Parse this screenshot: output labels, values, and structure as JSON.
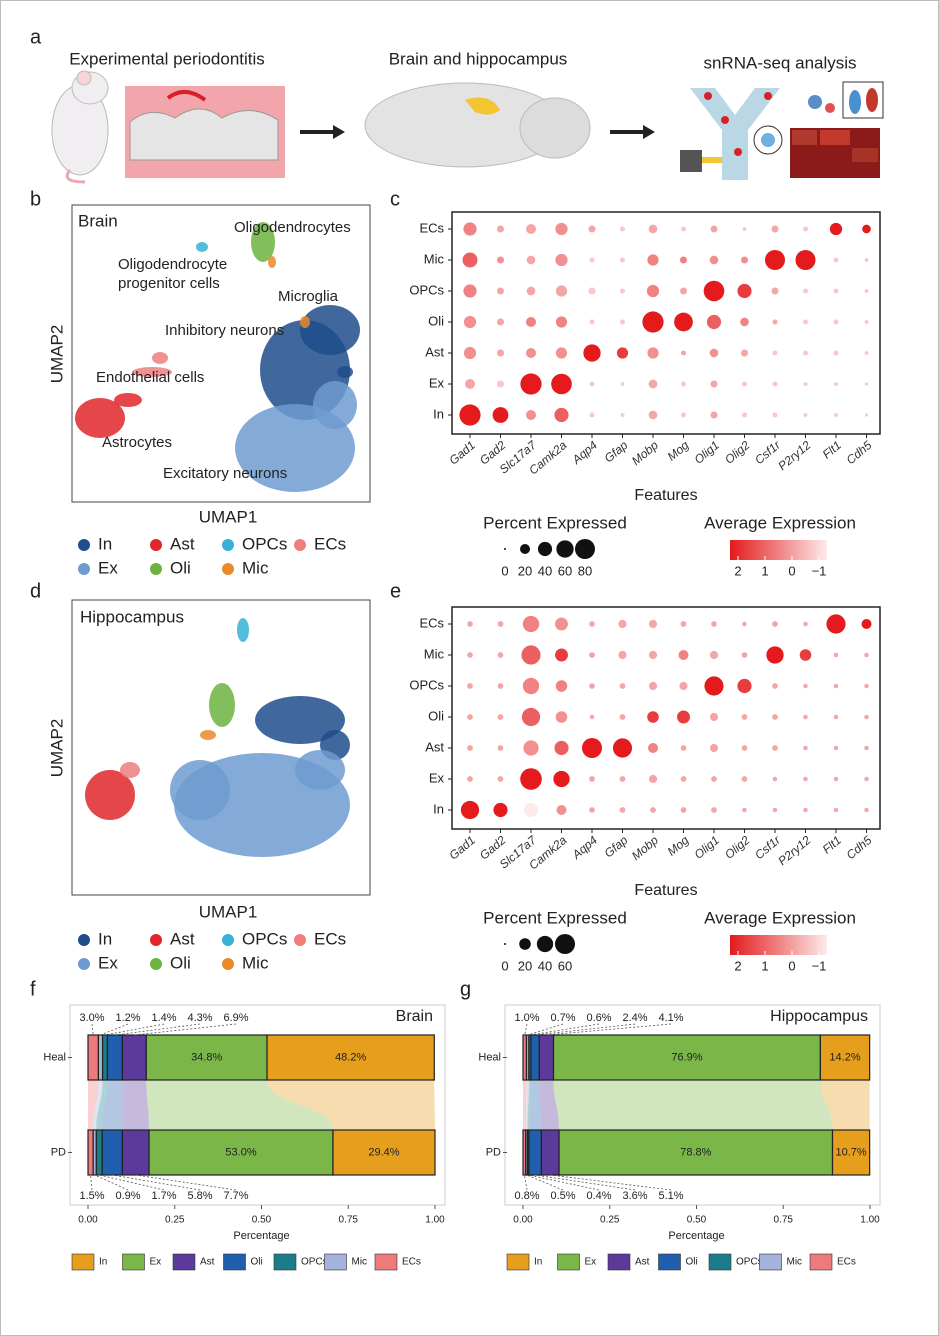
{
  "panel_labels": [
    "a",
    "b",
    "c",
    "d",
    "e",
    "f",
    "g"
  ],
  "panel_a": {
    "steps": [
      "Experimental periodontitis",
      "Brain and hippocampus",
      "snRNA-seq analysis"
    ]
  },
  "umap": [
    {
      "title": "Brain",
      "x_label": "UMAP1",
      "y_label": "UMAP2",
      "annotations": [
        {
          "lines": [
            "Oligodendrocytes"
          ]
        },
        {
          "lines": [
            "Oligodendrocyte",
            "progenitor cells"
          ]
        },
        {
          "lines": [
            "Microglia"
          ]
        },
        {
          "lines": [
            "Inhibitory neurons"
          ]
        },
        {
          "lines": [
            "Endothelial cells"
          ]
        },
        {
          "lines": [
            "Astrocytes"
          ]
        },
        {
          "lines": [
            "Excitatory neurons"
          ]
        }
      ],
      "legend": [
        {
          "name": "In",
          "color": "#1f4e8c"
        },
        {
          "name": "Ex",
          "color": "#6f9bd0"
        },
        {
          "name": "Ast",
          "color": "#e0262a"
        },
        {
          "name": "Oli",
          "color": "#6db33f"
        },
        {
          "name": "OPCs",
          "color": "#35b2d6"
        },
        {
          "name": "Mic",
          "color": "#e98a2b"
        },
        {
          "name": "ECs",
          "color": "#ef7f7f"
        }
      ]
    },
    {
      "title": "Hippocampus",
      "x_label": "UMAP1",
      "y_label": "UMAP2",
      "annotations": [],
      "legend": [
        {
          "name": "In",
          "color": "#1f4e8c"
        },
        {
          "name": "Ex",
          "color": "#6f9bd0"
        },
        {
          "name": "Ast",
          "color": "#e0262a"
        },
        {
          "name": "Oli",
          "color": "#6db33f"
        },
        {
          "name": "OPCs",
          "color": "#35b2d6"
        },
        {
          "name": "Mic",
          "color": "#e98a2b"
        },
        {
          "name": "ECs",
          "color": "#ef7f7f"
        }
      ]
    }
  ],
  "chart_data": [
    {
      "type": "dotplot",
      "x_label": "Features",
      "rows": [
        "ECs",
        "Mic",
        "OPCs",
        "Oli",
        "Ast",
        "Ex",
        "In"
      ],
      "categories": [
        "Gad1",
        "Gad2",
        "Slc17a7",
        "Camk2a",
        "Aqp4",
        "Gfap",
        "Mobp",
        "Mog",
        "Olig1",
        "Olig2",
        "Csf1r",
        "P2ry12",
        "Flt1",
        "Cdh5"
      ],
      "pct": [
        [
          35,
          10,
          20,
          30,
          10,
          5,
          15,
          5,
          10,
          3,
          10,
          5,
          30,
          15
        ],
        [
          45,
          10,
          15,
          30,
          5,
          5,
          25,
          10,
          15,
          10,
          80,
          80,
          5,
          3
        ],
        [
          35,
          10,
          15,
          25,
          10,
          5,
          30,
          10,
          85,
          40,
          10,
          5,
          5,
          3
        ],
        [
          30,
          10,
          20,
          25,
          5,
          5,
          90,
          70,
          40,
          15,
          5,
          5,
          5,
          3
        ],
        [
          30,
          10,
          20,
          25,
          60,
          25,
          25,
          5,
          15,
          10,
          5,
          5,
          5,
          3
        ],
        [
          20,
          10,
          90,
          85,
          5,
          3,
          15,
          5,
          10,
          5,
          5,
          3,
          3,
          2
        ],
        [
          90,
          50,
          20,
          40,
          5,
          3,
          15,
          5,
          10,
          5,
          5,
          3,
          3,
          2
        ]
      ],
      "avg": [
        [
          0.5,
          0,
          0,
          0.3,
          0,
          -0.5,
          0,
          -0.5,
          0,
          -0.5,
          0,
          -0.5,
          2,
          2
        ],
        [
          1,
          0.3,
          0,
          0.3,
          -0.5,
          -0.5,
          0.5,
          0.5,
          0.3,
          0.3,
          2,
          2,
          -0.5,
          -0.5
        ],
        [
          0.5,
          0,
          0,
          0,
          -0.5,
          -0.5,
          0.5,
          0,
          2,
          1.5,
          0,
          -0.5,
          -0.5,
          -0.5
        ],
        [
          0.3,
          0,
          0.5,
          0.5,
          -0.5,
          -0.5,
          2,
          2,
          1,
          0.5,
          0,
          -0.5,
          -0.5,
          -0.5
        ],
        [
          0.3,
          0,
          0.3,
          0.3,
          2,
          1.5,
          0.3,
          0,
          0.3,
          0,
          -0.5,
          -0.5,
          -0.5,
          -0.5
        ],
        [
          0,
          -0.5,
          2,
          2,
          -0.5,
          -0.5,
          0,
          -0.5,
          0,
          -0.5,
          -0.5,
          -0.5,
          -0.5,
          -0.5
        ],
        [
          2,
          2,
          0.3,
          1,
          -0.5,
          -0.5,
          0,
          -0.5,
          0,
          -0.5,
          -0.5,
          -0.5,
          -0.5,
          -0.5
        ]
      ],
      "size_legend_title": "Percent Expressed",
      "size_lim": [
        0,
        80
      ],
      "size_ticks": [
        0,
        20,
        40,
        60,
        80
      ],
      "color_legend_title": "Average Expression",
      "clim": [
        -1,
        2
      ],
      "color_ticks": [
        2,
        1,
        0,
        {
          "value": -1,
          "label": "−1"
        }
      ],
      "color_high": "#e41a1c",
      "color_low": "#fdeaea"
    },
    {
      "type": "dotplot",
      "x_label": "Features",
      "rows": [
        "ECs",
        "Mic",
        "OPCs",
        "Oli",
        "Ast",
        "Ex",
        "In"
      ],
      "categories": [
        "Gad1",
        "Gad2",
        "Slc17a7",
        "Camk2a",
        "Aqp4",
        "Gfap",
        "Mobp",
        "Mog",
        "Olig1",
        "Olig2",
        "Csf1r",
        "P2ry12",
        "Flt1",
        "Cdh5"
      ],
      "pct": [
        [
          5,
          5,
          40,
          25,
          5,
          10,
          10,
          5,
          5,
          3,
          5,
          3,
          55,
          15
        ],
        [
          5,
          5,
          55,
          25,
          5,
          10,
          10,
          15,
          10,
          5,
          45,
          20,
          3,
          3
        ],
        [
          5,
          5,
          40,
          20,
          5,
          5,
          10,
          10,
          55,
          30,
          5,
          3,
          3,
          3
        ],
        [
          5,
          5,
          50,
          20,
          3,
          5,
          20,
          25,
          10,
          5,
          5,
          3,
          3,
          3
        ],
        [
          5,
          5,
          35,
          30,
          60,
          55,
          15,
          5,
          10,
          5,
          5,
          3,
          3,
          3
        ],
        [
          5,
          5,
          70,
          40,
          5,
          5,
          10,
          5,
          5,
          5,
          3,
          3,
          3,
          3
        ],
        [
          50,
          30,
          30,
          15,
          5,
          5,
          5,
          5,
          5,
          3,
          3,
          3,
          3,
          3
        ]
      ],
      "avg": [
        [
          0,
          0,
          0.5,
          0.3,
          0,
          0,
          0,
          0,
          0,
          0,
          0,
          0,
          2,
          2
        ],
        [
          0,
          0,
          1,
          1.5,
          0,
          0,
          0,
          0.5,
          0,
          0,
          2,
          1.5,
          0,
          0
        ],
        [
          0,
          0,
          0.5,
          0.5,
          0,
          0,
          0,
          0,
          2,
          1.5,
          0,
          0,
          0,
          0
        ],
        [
          0,
          0,
          1,
          0.3,
          0,
          0,
          1.5,
          1.5,
          0,
          0,
          0,
          0,
          0,
          0
        ],
        [
          0,
          0,
          0.3,
          1,
          2,
          2,
          0.5,
          0,
          0,
          0,
          0,
          0,
          0,
          0
        ],
        [
          0,
          0,
          2,
          2,
          0,
          0,
          0,
          0,
          0,
          0,
          0,
          0,
          0,
          0
        ],
        [
          2,
          2,
          -1,
          0.3,
          0,
          0,
          0,
          0,
          0,
          0,
          0,
          0,
          0,
          0
        ]
      ],
      "size_legend_title": "Percent Expressed",
      "size_lim": [
        0,
        60
      ],
      "size_ticks": [
        0,
        20,
        40,
        60
      ],
      "color_legend_title": "Average Expression",
      "clim": [
        -1,
        2
      ],
      "color_ticks": [
        2,
        1,
        0,
        {
          "value": -1,
          "label": "−1"
        }
      ],
      "color_high": "#e41a1c",
      "color_low": "#fdeaea"
    },
    {
      "type": "stacked_bar",
      "title": "Brain",
      "categories": [
        "Heal",
        "PD"
      ],
      "x_label": "Percentage",
      "xlim": [
        0,
        1
      ],
      "xticks": [
        {
          "value": 0,
          "label": "0.00"
        },
        {
          "value": 0.25,
          "label": "0.25"
        },
        {
          "value": 0.5,
          "label": "0.50"
        },
        {
          "value": 0.75,
          "label": "0.75"
        },
        {
          "value": 1,
          "label": "1.00"
        }
      ],
      "series": [
        {
          "name": "In",
          "color": "#e69f1c",
          "values": [
            0.482,
            0.294
          ],
          "value_labels": [
            "48.2%",
            "29.4%"
          ]
        },
        {
          "name": "Ex",
          "color": "#7ab648",
          "values": [
            0.348,
            0.53
          ],
          "value_labels": [
            "34.8%",
            "53.0%"
          ]
        },
        {
          "name": "Ast",
          "color": "#5b3a9b",
          "values": [
            0.069,
            0.077
          ],
          "value_labels": [
            "6.9%",
            "7.7%"
          ]
        },
        {
          "name": "Oli",
          "color": "#1f5fad",
          "values": [
            0.043,
            0.058
          ],
          "value_labels": [
            "4.3%",
            "5.8%"
          ]
        },
        {
          "name": "OPCs",
          "color": "#1b7d8a",
          "values": [
            0.014,
            0.017
          ],
          "value_labels": [
            "1.4%",
            "1.7%"
          ]
        },
        {
          "name": "Mic",
          "color": "#a4b3dc",
          "values": [
            0.012,
            0.009
          ],
          "value_labels": [
            "1.2%",
            "0.9%"
          ]
        },
        {
          "name": "ECs",
          "color": "#ee7b7b",
          "values": [
            0.03,
            0.015
          ],
          "value_labels": [
            "3.0%",
            "1.5%"
          ]
        }
      ]
    },
    {
      "type": "stacked_bar",
      "title": "Hippocampus",
      "categories": [
        "Heal",
        "PD"
      ],
      "x_label": "Percentage",
      "xlim": [
        0,
        1
      ],
      "xticks": [
        {
          "value": 0,
          "label": "0.00"
        },
        {
          "value": 0.25,
          "label": "0.25"
        },
        {
          "value": 0.5,
          "label": "0.50"
        },
        {
          "value": 0.75,
          "label": "0.75"
        },
        {
          "value": 1,
          "label": "1.00"
        }
      ],
      "series": [
        {
          "name": "In",
          "color": "#e69f1c",
          "values": [
            0.142,
            0.107
          ],
          "value_labels": [
            "14.2%",
            "10.7%"
          ]
        },
        {
          "name": "Ex",
          "color": "#7ab648",
          "values": [
            0.769,
            0.788
          ],
          "value_labels": [
            "76.9%",
            "78.8%"
          ]
        },
        {
          "name": "Ast",
          "color": "#5b3a9b",
          "values": [
            0.041,
            0.051
          ],
          "value_labels": [
            "4.1%",
            "5.1%"
          ]
        },
        {
          "name": "Oli",
          "color": "#1f5fad",
          "values": [
            0.024,
            0.036
          ],
          "value_labels": [
            "2.4%",
            "3.6%"
          ]
        },
        {
          "name": "OPCs",
          "color": "#1b7d8a",
          "values": [
            0.006,
            0.004
          ],
          "value_labels": [
            "0.6%",
            "0.4%"
          ]
        },
        {
          "name": "Mic",
          "color": "#a4b3dc",
          "values": [
            0.007,
            0.005
          ],
          "value_labels": [
            "0.7%",
            "0.5%"
          ]
        },
        {
          "name": "ECs",
          "color": "#ee7b7b",
          "values": [
            0.01,
            0.008
          ],
          "value_labels": [
            "1.0%",
            "0.8%"
          ]
        }
      ]
    }
  ]
}
